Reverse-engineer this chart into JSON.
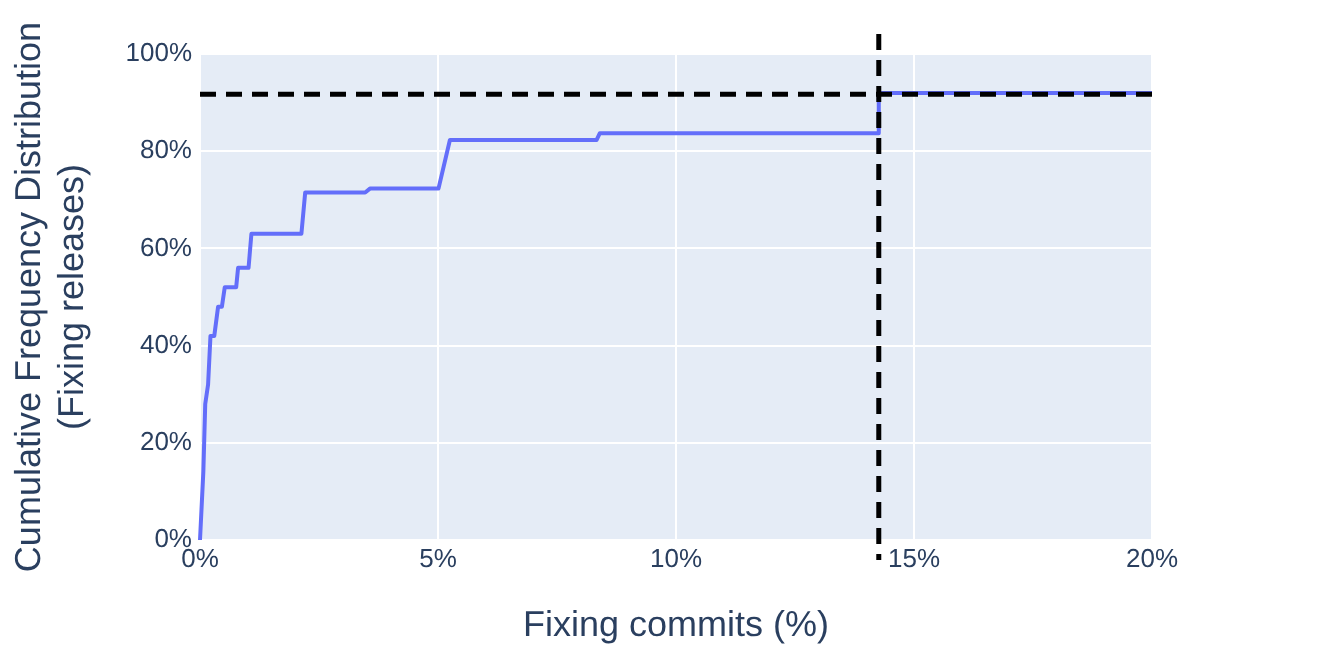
{
  "chart_data": {
    "type": "line",
    "xlabel": "Fixing commits (%)",
    "ylabel": "Cumulative Frequency Distribution (Fixing releases)",
    "series": [
      {
        "color": "#636efa",
        "x": [
          0,
          0.07,
          0.11,
          0.17,
          0.22,
          0.3,
          0.38,
          0.46,
          0.52,
          0.76,
          0.8,
          1.02,
          1.08,
          2.13,
          2.21,
          3.47,
          3.57,
          5.01,
          5.25,
          8.33,
          8.4,
          14.26,
          14.26,
          20
        ],
        "values": [
          0,
          14,
          28,
          32,
          42,
          42,
          48,
          48,
          52,
          52,
          56,
          56,
          63,
          63,
          71.5,
          71.5,
          72.3,
          72.3,
          82.3,
          82.3,
          83.7,
          83.7,
          92,
          92
        ]
      }
    ],
    "xlim": [
      0,
      20
    ],
    "xticks": [
      {
        "value": 0,
        "label": "0%"
      },
      {
        "value": 5,
        "label": "5%"
      },
      {
        "value": 10,
        "label": "10%"
      },
      {
        "value": 15,
        "label": "15%"
      },
      {
        "value": 20,
        "label": "20%"
      }
    ],
    "ylim": [
      0,
      100
    ],
    "yticks": [
      {
        "value": 0,
        "label": "0%"
      },
      {
        "value": 20,
        "label": "20%"
      },
      {
        "value": 40,
        "label": "40%"
      },
      {
        "value": 60,
        "label": "60%"
      },
      {
        "value": 80,
        "label": "80%"
      },
      {
        "value": 100,
        "label": "100%"
      }
    ],
    "ref_lines": [
      {
        "axis": "y",
        "value": 91.7,
        "color": "#000000",
        "line_style": "dashed"
      },
      {
        "axis": "x",
        "value": 14.26,
        "color": "#000000",
        "line_style": "dashed"
      }
    ],
    "grid": true,
    "legend": false,
    "marker": "none",
    "line_style": "solid"
  }
}
